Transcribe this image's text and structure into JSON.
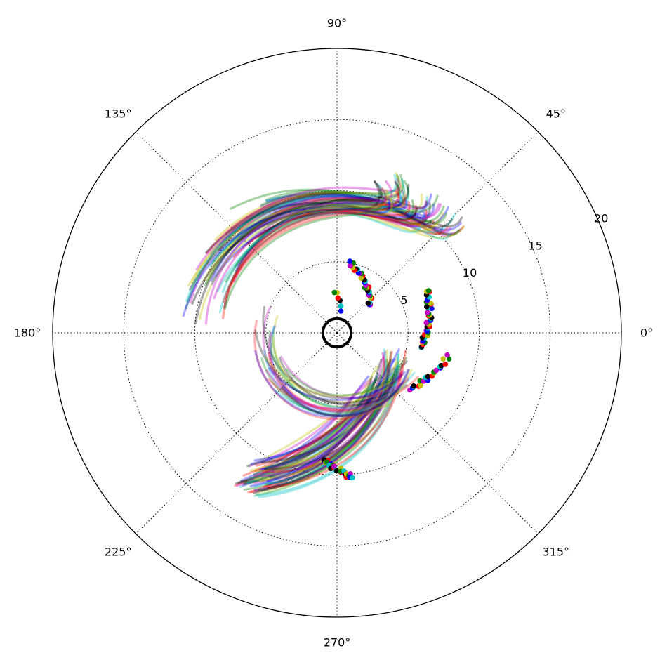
{
  "chart_data": {
    "type": "polar-line",
    "title": "",
    "theta_unit": "degrees",
    "theta_ticks": [
      "0°",
      "45°",
      "90°",
      "135°",
      "180°",
      "225°",
      "270°",
      "315°"
    ],
    "theta_tick_values": [
      0,
      45,
      90,
      135,
      180,
      225,
      270,
      315
    ],
    "r_ticks": [
      "5",
      "10",
      "15",
      "20"
    ],
    "r_tick_values": [
      5,
      10,
      15,
      20
    ],
    "rlim": [
      0,
      20
    ],
    "grid": true,
    "legend": "none",
    "center_ring_radius": 1,
    "colors": [
      "#0000ff",
      "#008000",
      "#ff0000",
      "#00bfbf",
      "#bf00bf",
      "#bfbf00",
      "#000000"
    ],
    "trajectory_families": [
      {
        "name": "",
        "count": 70,
        "start": {
          "r": [
            10,
            12
          ],
          "theta_deg": [
            40,
            76
          ]
        },
        "control": {
          "r": [
            6.5,
            9.5
          ],
          "theta_deg": [
            35,
            55
          ]
        },
        "end": {
          "r": [
            8,
            11.5
          ],
          "theta_deg": [
            118,
            176
          ]
        },
        "line_alpha": 0.35
      },
      {
        "name": "",
        "count": 60,
        "start": {
          "r": [
            10.5,
            13
          ],
          "theta_deg": [
            236,
            246
          ]
        },
        "control": {
          "r": [
            3.5,
            6.5
          ],
          "theta_deg": [
            260,
            300
          ]
        },
        "end": {
          "r": [
            3.5,
            5.5
          ],
          "theta_deg": [
            305,
            345
          ]
        },
        "line_alpha": 0.35
      },
      {
        "name": "",
        "count": 25,
        "start": {
          "r": [
            4.2,
            6
          ],
          "theta_deg": [
            160,
            225
          ]
        },
        "control": {
          "r": [
            3.5,
            6.5
          ],
          "theta_deg": [
            255,
            290
          ]
        },
        "end": {
          "r": [
            5,
            6.5
          ],
          "theta_deg": [
            305,
            335
          ]
        },
        "line_alpha": 0.3
      }
    ],
    "marker_groups": [
      {
        "name": "",
        "r_range": [
          1.5,
          3
        ],
        "theta_deg_range": [
          80,
          93
        ],
        "count": 6
      },
      {
        "name": "",
        "r_range": [
          3,
          5
        ],
        "theta_deg_range": [
          40,
          80
        ],
        "count": 30
      },
      {
        "name": "",
        "r_range": [
          6,
          7
        ],
        "theta_deg_range": [
          -10,
          25
        ],
        "count": 40
      },
      {
        "name": "",
        "r_range": [
          6.5,
          8
        ],
        "theta_deg_range": [
          -38,
          -12
        ],
        "count": 22
      },
      {
        "name": "",
        "r_range": [
          9,
          10.2
        ],
        "theta_deg_range": [
          -96,
          -84
        ],
        "count": 30
      }
    ]
  }
}
